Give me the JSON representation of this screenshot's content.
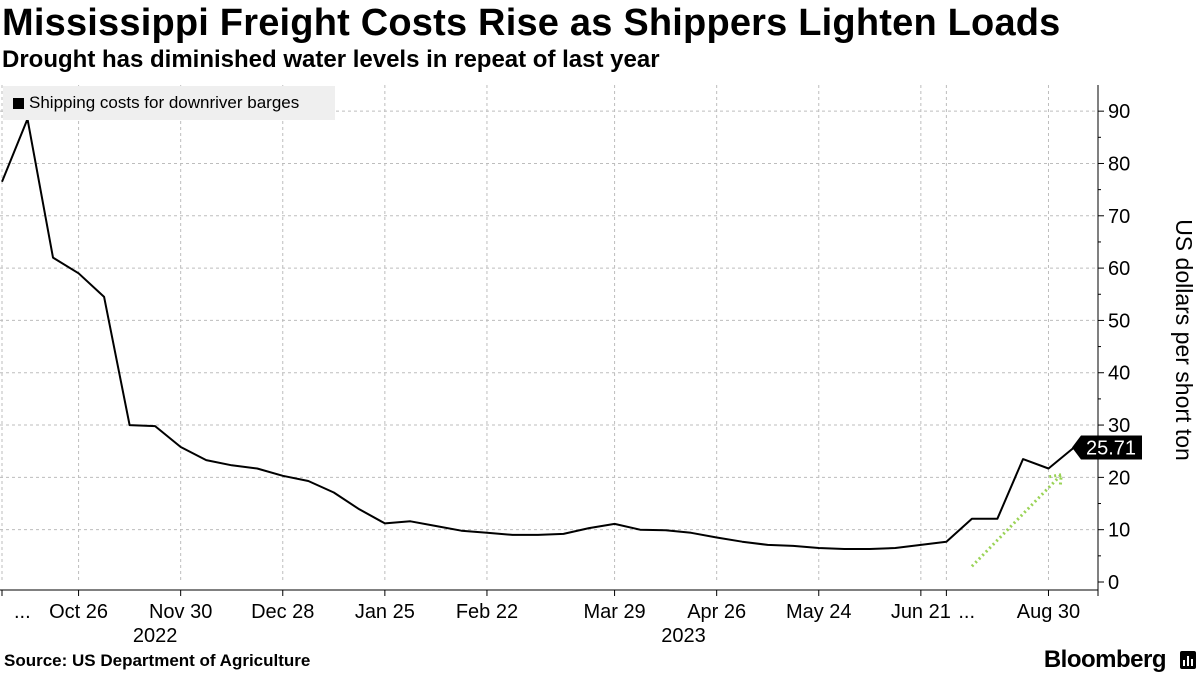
{
  "header": {
    "title": "Mississippi Freight Costs Rise as Shippers Lighten Loads",
    "subtitle": "Drought has diminished water levels in repeat of last year"
  },
  "footer": {
    "source": "Source: US Department of Agriculture",
    "brand": "Bloomberg"
  },
  "colors": {
    "line": "#000000",
    "grid": "#bdbdbd",
    "legend_bg": "#efefef",
    "arrow": "#9ad356"
  },
  "chart_data": {
    "type": "line",
    "title": "Mississippi Freight Costs Rise as Shippers Lighten Loads",
    "subtitle": "Drought has diminished water levels in repeat of last year",
    "xlabel": "",
    "ylabel": "US dollars per short ton",
    "ylim": [
      0,
      95
    ],
    "yticks": [
      0,
      10,
      20,
      30,
      40,
      50,
      60,
      70,
      80,
      90
    ],
    "grid": true,
    "legend_position": "top-left",
    "series": [
      {
        "name": "Shipping costs for downriver barges",
        "values": [
          76.5,
          88.5,
          62,
          59,
          54.5,
          30,
          29.8,
          25.8,
          23.3,
          22.3,
          21.7,
          20.3,
          19.3,
          17.1,
          13.9,
          11.2,
          11.6,
          10.7,
          9.8,
          9.4,
          9.0,
          9.0,
          9.2,
          10.3,
          11.1,
          10.0,
          9.9,
          9.4,
          8.5,
          7.7,
          7.1,
          6.9,
          6.5,
          6.3,
          6.3,
          6.5,
          7.1,
          7.7,
          12.1,
          12.1,
          23.5,
          21.7,
          25.71
        ]
      }
    ],
    "x_tick_labels": [
      "...",
      "Oct 26",
      "Nov 30",
      "Dec 28",
      "Jan 25",
      "Feb 22",
      "Mar 29",
      "Apr 26",
      "May 24",
      "Jun 21",
      "...",
      "Aug 30"
    ],
    "x_tick_indices": [
      0,
      3,
      7,
      11,
      15,
      19,
      24,
      28,
      32,
      36,
      37,
      41
    ],
    "year_labels": [
      {
        "label": "2022",
        "index": 6
      },
      {
        "label": "2023",
        "index": 26.7
      }
    ],
    "last_value_label": "25.71",
    "annotations": [
      {
        "type": "trend-arrow",
        "from_index": 38,
        "from_value": 3,
        "to_index": 41.5,
        "to_value": 20.5
      }
    ]
  }
}
